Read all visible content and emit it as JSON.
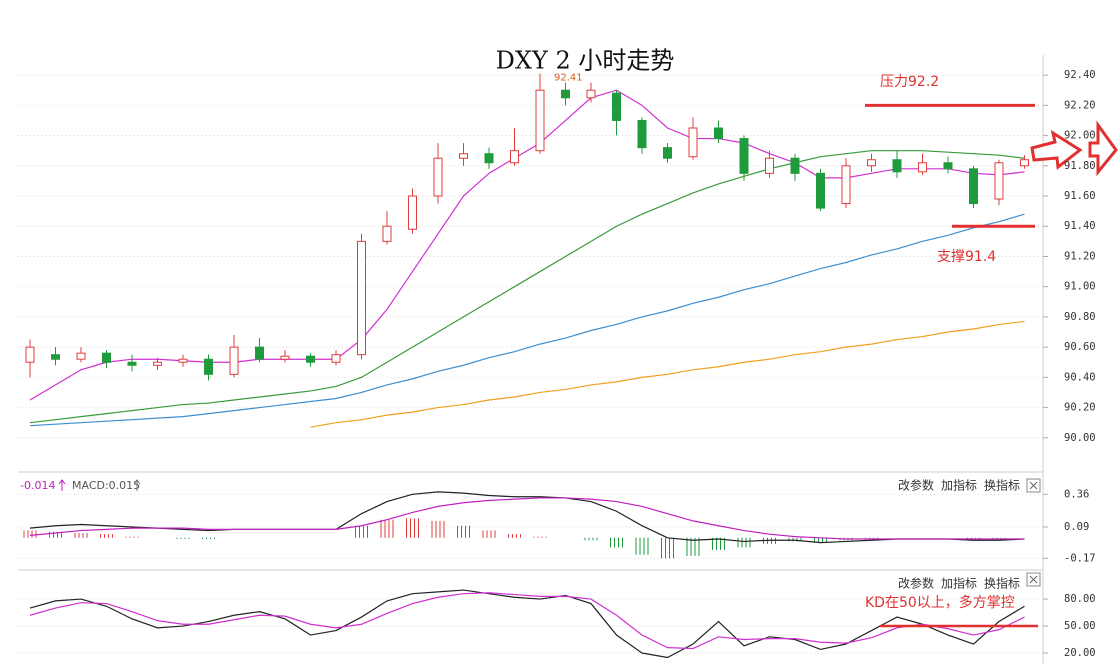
{
  "chart_data": [
    {
      "type": "candlestick",
      "title": "DXY 2 小时走势",
      "open": [
        90.5,
        90.55,
        90.52,
        90.56,
        90.5,
        90.48,
        90.5,
        90.52,
        90.42,
        90.6,
        90.52,
        90.54,
        90.5,
        90.55,
        91.3,
        91.38,
        91.6,
        91.85,
        91.88,
        91.82,
        91.9,
        92.3,
        92.25,
        92.28,
        92.1,
        91.92,
        91.86,
        92.05,
        91.98,
        91.75,
        91.85,
        91.75,
        91.55,
        91.8,
        91.84,
        91.76,
        91.82,
        91.78,
        91.58,
        91.8
      ],
      "close": [
        90.6,
        90.52,
        90.56,
        90.5,
        90.48,
        90.5,
        90.52,
        90.42,
        90.6,
        90.52,
        90.54,
        90.5,
        90.55,
        91.3,
        91.4,
        91.6,
        91.85,
        91.88,
        91.82,
        91.9,
        92.3,
        92.25,
        92.3,
        92.1,
        91.92,
        91.85,
        92.05,
        91.98,
        91.75,
        91.85,
        91.75,
        91.52,
        91.8,
        91.84,
        91.76,
        91.82,
        91.78,
        91.55,
        91.82,
        91.84
      ],
      "high": [
        90.65,
        90.6,
        90.6,
        90.58,
        90.55,
        90.53,
        90.55,
        90.55,
        90.68,
        90.66,
        90.58,
        90.56,
        90.58,
        91.35,
        91.5,
        91.65,
        91.95,
        91.95,
        91.92,
        92.05,
        92.41,
        92.35,
        92.35,
        92.3,
        92.12,
        91.95,
        92.12,
        92.1,
        92.0,
        91.9,
        91.88,
        91.78,
        91.85,
        91.88,
        91.9,
        91.88,
        91.86,
        91.8,
        91.84,
        91.87
      ],
      "low": [
        90.4,
        90.48,
        90.5,
        90.46,
        90.44,
        90.45,
        90.47,
        90.38,
        90.4,
        90.5,
        90.5,
        90.47,
        90.48,
        90.52,
        91.28,
        91.35,
        91.55,
        91.8,
        91.78,
        91.8,
        91.88,
        92.2,
        92.22,
        92.0,
        91.88,
        91.82,
        91.84,
        91.95,
        91.7,
        91.72,
        91.7,
        91.5,
        91.52,
        91.76,
        91.72,
        91.74,
        91.75,
        91.52,
        91.54,
        91.78
      ],
      "up_color": "#e03c3c",
      "down_color": "#1f9a3c",
      "series": [
        {
          "color": "#3d8fd1",
          "values": [
            90.08,
            90.09,
            90.1,
            90.11,
            90.12,
            90.13,
            90.14,
            90.16,
            90.18,
            90.2,
            90.22,
            90.24,
            90.26,
            90.3,
            90.35,
            90.39,
            90.44,
            90.48,
            90.53,
            90.57,
            90.62,
            90.66,
            90.71,
            90.75,
            90.8,
            90.84,
            90.89,
            90.93,
            90.98,
            91.02,
            91.07,
            91.12,
            91.16,
            91.21,
            91.25,
            91.3,
            91.34,
            91.39,
            91.43,
            91.48
          ]
        },
        {
          "color": "#f0a020",
          "values": [
            null,
            null,
            null,
            null,
            null,
            null,
            null,
            null,
            null,
            null,
            null,
            90.07,
            90.1,
            90.12,
            90.15,
            90.17,
            90.2,
            90.22,
            90.25,
            90.27,
            90.3,
            90.32,
            90.35,
            90.37,
            90.4,
            90.42,
            90.45,
            90.47,
            90.5,
            90.52,
            90.55,
            90.57,
            90.6,
            90.62,
            90.65,
            90.67,
            90.7,
            90.72,
            90.75,
            90.77
          ]
        },
        {
          "color": "#3a9a3a",
          "values": [
            90.1,
            90.12,
            90.14,
            90.16,
            90.18,
            90.2,
            90.22,
            90.23,
            90.25,
            90.27,
            90.29,
            90.31,
            90.34,
            90.4,
            90.5,
            90.6,
            90.7,
            90.8,
            90.9,
            91.0,
            91.1,
            91.2,
            91.3,
            91.4,
            91.48,
            91.55,
            91.62,
            91.68,
            91.73,
            91.78,
            91.82,
            91.86,
            91.88,
            91.9,
            91.9,
            91.9,
            91.89,
            91.88,
            91.87,
            91.85
          ]
        },
        {
          "color": "#d030d0",
          "values": [
            90.25,
            90.35,
            90.45,
            90.5,
            90.52,
            90.52,
            90.51,
            90.5,
            90.5,
            90.52,
            90.52,
            90.52,
            90.52,
            90.65,
            90.85,
            91.1,
            91.35,
            91.6,
            91.75,
            91.85,
            91.95,
            92.1,
            92.25,
            92.3,
            92.2,
            92.05,
            91.98,
            91.98,
            91.95,
            91.88,
            91.82,
            91.72,
            91.72,
            91.75,
            91.78,
            91.78,
            91.78,
            91.75,
            91.74,
            91.76
          ]
        }
      ],
      "max_label": {
        "value": 92.41,
        "label": "92.41"
      },
      "annotations": [
        {
          "value": 92.2,
          "label": "压力92.2",
          "color": "#e03030"
        },
        {
          "value": 91.4,
          "label": "支撑91.4",
          "color": "#e03030"
        }
      ],
      "ylim": [
        89.82,
        92.5
      ],
      "yticks": [
        {
          "value": 90.0,
          "label": "90.00"
        },
        {
          "value": 90.2,
          "label": "90.20"
        },
        {
          "value": 90.4,
          "label": "90.40"
        },
        {
          "value": 90.6,
          "label": "90.60"
        },
        {
          "value": 90.8,
          "label": "90.80"
        },
        {
          "value": 91.0,
          "label": "91.00"
        },
        {
          "value": 91.2,
          "label": "91.20"
        },
        {
          "value": 91.4,
          "label": "91.40"
        },
        {
          "value": 91.6,
          "label": "91.60"
        },
        {
          "value": 91.8,
          "label": "91.80"
        },
        {
          "value": 92.0,
          "label": "92.00"
        },
        {
          "value": 92.2,
          "label": "92.20"
        },
        {
          "value": 92.4,
          "label": "92.40"
        }
      ],
      "grid": true
    },
    {
      "type": "macd",
      "dif_label": "-0.014",
      "macd_label": "MACD:0.015",
      "buttons": [
        "改参数",
        "加指标",
        "换指标"
      ],
      "series": [
        {
          "color": "#222222",
          "values": [
            0.08,
            0.1,
            0.11,
            0.1,
            0.09,
            0.08,
            0.07,
            0.06,
            0.07,
            0.07,
            0.07,
            0.07,
            0.07,
            0.2,
            0.3,
            0.36,
            0.38,
            0.37,
            0.35,
            0.34,
            0.34,
            0.33,
            0.3,
            0.22,
            0.1,
            0.0,
            -0.02,
            -0.01,
            -0.03,
            -0.02,
            -0.02,
            -0.04,
            -0.03,
            -0.02,
            -0.01,
            -0.01,
            -0.01,
            -0.02,
            -0.02,
            -0.01
          ]
        },
        {
          "color": "#c020c0",
          "values": [
            0.02,
            0.04,
            0.06,
            0.07,
            0.08,
            0.08,
            0.08,
            0.07,
            0.07,
            0.07,
            0.07,
            0.07,
            0.07,
            0.1,
            0.15,
            0.21,
            0.26,
            0.29,
            0.31,
            0.32,
            0.33,
            0.33,
            0.32,
            0.3,
            0.26,
            0.2,
            0.14,
            0.1,
            0.06,
            0.03,
            0.01,
            0.0,
            -0.01,
            -0.01,
            -0.01,
            -0.01,
            -0.01,
            -0.01,
            -0.01,
            -0.01
          ]
        }
      ],
      "histogram": [
        0.06,
        0.05,
        0.04,
        0.03,
        0.01,
        0,
        -0.01,
        -0.01,
        0,
        0,
        0,
        0,
        0,
        0.1,
        0.15,
        0.16,
        0.14,
        0.1,
        0.06,
        0.03,
        0.01,
        0,
        -0.02,
        -0.08,
        -0.14,
        -0.17,
        -0.15,
        -0.1,
        -0.08,
        -0.05,
        -0.03,
        -0.04,
        -0.02,
        -0.01,
        0,
        0,
        0,
        -0.01,
        -0.01,
        0
      ],
      "up_color": "#e03c3c",
      "down_color": "#1f9a3c",
      "ylim": [
        -0.25,
        0.52
      ],
      "yticks": [
        -0.17,
        0.09,
        0.36
      ],
      "grid": true
    },
    {
      "type": "kd",
      "buttons": [
        "改参数",
        "加指标",
        "换指标"
      ],
      "series": [
        {
          "color": "#222222",
          "values": [
            70,
            78,
            80,
            72,
            58,
            48,
            50,
            55,
            62,
            66,
            58,
            40,
            45,
            60,
            78,
            86,
            88,
            90,
            86,
            82,
            80,
            84,
            75,
            40,
            20,
            15,
            30,
            55,
            28,
            38,
            35,
            24,
            30,
            45,
            60,
            52,
            40,
            30,
            55,
            72
          ]
        },
        {
          "color": "#d030d0",
          "values": [
            62,
            70,
            76,
            75,
            66,
            56,
            52,
            52,
            57,
            62,
            61,
            52,
            48,
            52,
            64,
            75,
            82,
            86,
            87,
            85,
            83,
            83,
            80,
            62,
            40,
            26,
            25,
            38,
            35,
            36,
            36,
            32,
            31,
            37,
            48,
            52,
            47,
            40,
            46,
            60
          ]
        }
      ],
      "annotations": [
        {
          "value": 50,
          "label": "KD在50以上，多方掌控",
          "color": "#e03030"
        }
      ],
      "ylim": [
        10,
        109
      ],
      "yticks": [
        {
          "value": 20,
          "label": "20.00"
        },
        {
          "value": 50,
          "label": "50.00"
        },
        {
          "value": 80,
          "label": "80.00"
        }
      ],
      "grid": true
    }
  ]
}
